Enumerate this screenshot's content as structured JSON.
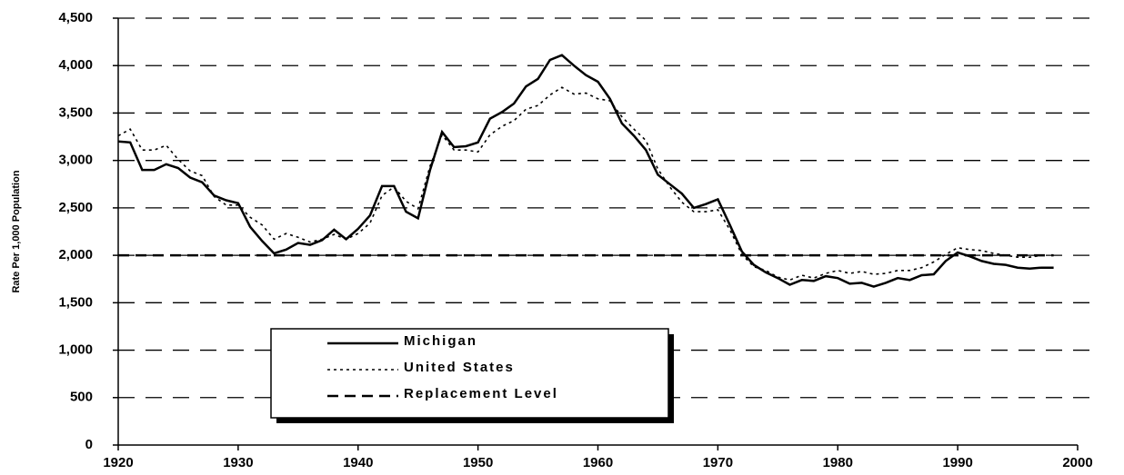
{
  "chart_data": {
    "type": "line",
    "ylabel": "Rate Per 1,000 Population",
    "x": [
      1920,
      1921,
      1922,
      1923,
      1924,
      1925,
      1926,
      1927,
      1928,
      1929,
      1930,
      1931,
      1932,
      1933,
      1934,
      1935,
      1936,
      1937,
      1938,
      1939,
      1940,
      1941,
      1942,
      1943,
      1944,
      1945,
      1946,
      1947,
      1948,
      1949,
      1950,
      1951,
      1952,
      1953,
      1954,
      1955,
      1956,
      1957,
      1958,
      1959,
      1960,
      1961,
      1962,
      1963,
      1964,
      1965,
      1966,
      1967,
      1968,
      1969,
      1970,
      1971,
      1972,
      1973,
      1974,
      1975,
      1976,
      1977,
      1978,
      1979,
      1980,
      1981,
      1982,
      1983,
      1984,
      1985,
      1986,
      1987,
      1988,
      1989,
      1990,
      1991,
      1992,
      1993,
      1994,
      1995,
      1996,
      1997,
      1998
    ],
    "series": [
      {
        "name": "Michigan",
        "color": "#000000",
        "dash": "solid",
        "values": [
          3200,
          3190,
          2900,
          2900,
          2960,
          2920,
          2820,
          2770,
          2630,
          2580,
          2550,
          2300,
          2150,
          2020,
          2060,
          2130,
          2110,
          2160,
          2270,
          2170,
          2280,
          2420,
          2730,
          2730,
          2460,
          2390,
          2900,
          3300,
          3140,
          3150,
          3190,
          3440,
          3510,
          3600,
          3780,
          3860,
          4060,
          4110,
          4000,
          3900,
          3830,
          3650,
          3390,
          3260,
          3110,
          2850,
          2750,
          2650,
          2500,
          2540,
          2590,
          2320,
          2040,
          1900,
          1820,
          1760,
          1690,
          1740,
          1730,
          1780,
          1760,
          1700,
          1710,
          1670,
          1710,
          1760,
          1740,
          1790,
          1800,
          1940,
          2030,
          1990,
          1940,
          1910,
          1900,
          1870,
          1860,
          1870,
          1870
        ]
      },
      {
        "name": "United States",
        "color": "#000000",
        "dash": "dotted",
        "values": [
          3260,
          3330,
          3110,
          3110,
          3160,
          3010,
          2890,
          2840,
          2620,
          2530,
          2530,
          2400,
          2320,
          2170,
          2230,
          2190,
          2140,
          2170,
          2220,
          2170,
          2230,
          2340,
          2630,
          2720,
          2570,
          2490,
          2940,
          3270,
          3110,
          3110,
          3090,
          3270,
          3360,
          3420,
          3540,
          3580,
          3690,
          3770,
          3700,
          3710,
          3650,
          3630,
          3460,
          3330,
          3210,
          2910,
          2720,
          2560,
          2460,
          2460,
          2480,
          2270,
          2010,
          1880,
          1840,
          1770,
          1740,
          1790,
          1760,
          1810,
          1840,
          1810,
          1830,
          1800,
          1810,
          1840,
          1840,
          1870,
          1930,
          2010,
          2080,
          2060,
          2050,
          2020,
          2000,
          1980,
          1980,
          2000,
          null
        ]
      },
      {
        "name": "Replacement Level",
        "color": "#000000",
        "dash": "dashed",
        "values": [
          2000,
          2000,
          2000,
          2000,
          2000,
          2000,
          2000,
          2000,
          2000,
          2000,
          2000,
          2000,
          2000,
          2000,
          2000,
          2000,
          2000,
          2000,
          2000,
          2000,
          2000,
          2000,
          2000,
          2000,
          2000,
          2000,
          2000,
          2000,
          2000,
          2000,
          2000,
          2000,
          2000,
          2000,
          2000,
          2000,
          2000,
          2000,
          2000,
          2000,
          2000,
          2000,
          2000,
          2000,
          2000,
          2000,
          2000,
          2000,
          2000,
          2000,
          2000,
          2000,
          2000,
          2000,
          2000,
          2000,
          2000,
          2000,
          2000,
          2000,
          2000,
          2000,
          2000,
          2000,
          2000,
          2000,
          2000,
          2000,
          2000,
          2000,
          2000,
          2000,
          2000,
          2000,
          2000,
          2000,
          2000,
          2000,
          2000
        ]
      }
    ],
    "xlim": [
      1920,
      2000
    ],
    "xticks": [
      1920,
      1930,
      1940,
      1950,
      1960,
      1970,
      1980,
      1990,
      2000
    ],
    "ylim": [
      0,
      4500
    ],
    "yticks": [
      0,
      500,
      {
        "value": 1000,
        "label": "1,000"
      },
      {
        "value": 1500,
        "label": "1,500"
      },
      {
        "value": 2000,
        "label": "2,000"
      },
      {
        "value": 2500,
        "label": "2,500"
      },
      {
        "value": 3000,
        "label": "3,000"
      },
      {
        "value": 3500,
        "label": "3,500"
      },
      {
        "value": 4000,
        "label": "4,000"
      },
      {
        "value": 4500,
        "label": "4,500"
      }
    ],
    "grid": true,
    "legend": "lower-left"
  }
}
